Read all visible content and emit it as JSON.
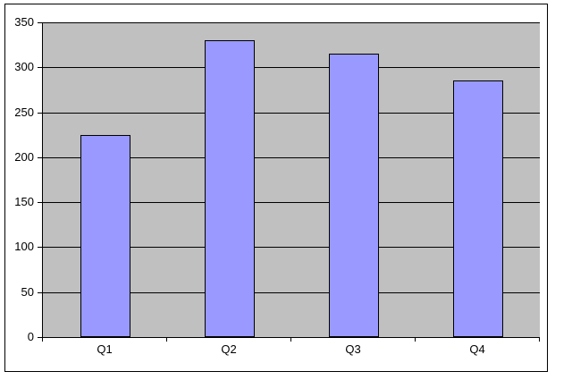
{
  "chart_data": {
    "type": "bar",
    "title": "",
    "subtitle": "",
    "categories": [
      "Q1",
      "Q2",
      "Q3",
      "Q4"
    ],
    "values": [
      225,
      330,
      315,
      285
    ],
    "xlabel": "",
    "ylabel": "",
    "ylim": [
      0,
      350
    ],
    "yticks": [
      0,
      50,
      100,
      150,
      200,
      250,
      300,
      350
    ],
    "ytick_step": 50,
    "grid": true,
    "legend": "none",
    "bar_gap_ratio": 0.6,
    "colors": {
      "bar_fill": "#9999ff",
      "bar_border": "#000000",
      "plot_background": "#c0c0c0",
      "gridline": "#000000",
      "axis": "#000000",
      "chart_border": "#000000",
      "page_background": "#ffffff",
      "text": "#000000"
    }
  }
}
